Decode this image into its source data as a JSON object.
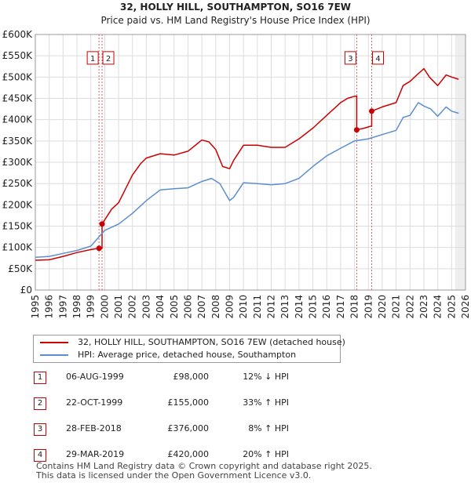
{
  "chart_data": {
    "type": "line",
    "title": "32, HOLLY HILL, SOUTHAMPTON, SO16 7EW",
    "subtitle": "Price paid vs. HM Land Registry's House Price Index (HPI)",
    "xlabel": "",
    "ylabel": "",
    "xlim": [
      1995,
      2026
    ],
    "ylim": [
      0,
      600000
    ],
    "x_ticks": [
      "1995",
      "1996",
      "1997",
      "1998",
      "1999",
      "2000",
      "2001",
      "2002",
      "2003",
      "2004",
      "2005",
      "2006",
      "2007",
      "2008",
      "2009",
      "2010",
      "2011",
      "2012",
      "2013",
      "2014",
      "2015",
      "2016",
      "2017",
      "2018",
      "2019",
      "2020",
      "2021",
      "2022",
      "2023",
      "2024",
      "2025",
      "2026"
    ],
    "y_ticks": [
      {
        "value": 0,
        "label": "£0"
      },
      {
        "value": 50000,
        "label": "£50K"
      },
      {
        "value": 100000,
        "label": "£100K"
      },
      {
        "value": 150000,
        "label": "£150K"
      },
      {
        "value": 200000,
        "label": "£200K"
      },
      {
        "value": 250000,
        "label": "£250K"
      },
      {
        "value": 300000,
        "label": "£300K"
      },
      {
        "value": 350000,
        "label": "£350K"
      },
      {
        "value": 400000,
        "label": "£400K"
      },
      {
        "value": 450000,
        "label": "£450K"
      },
      {
        "value": 500000,
        "label": "£500K"
      },
      {
        "value": 550000,
        "label": "£550K"
      },
      {
        "value": 600000,
        "label": "£600K"
      }
    ],
    "grid": true,
    "future_shading_from": 2025.25,
    "series": [
      {
        "name": "32, HOLLY HILL, SOUTHAMPTON, SO16 7EW (detached house)",
        "color": "#cc0000",
        "x": [
          1995,
          1996,
          1997,
          1998,
          1999.0,
          1999.59,
          1999.59,
          1999.81,
          1999.81,
          2000.5,
          2001,
          2002,
          2002.6,
          2003,
          2004,
          2005,
          2006,
          2007,
          2007.5,
          2008,
          2008.5,
          2009,
          2009.3,
          2010,
          2011,
          2012,
          2013,
          2014,
          2015,
          2016,
          2017,
          2017.5,
          2018.0,
          2018.16,
          2018.16,
          2018.7,
          2019.1,
          2019.24,
          2019.24,
          2020,
          2021,
          2021.5,
          2022,
          2022.5,
          2023,
          2023.4,
          2024,
          2024.6,
          2025,
          2025.5
        ],
        "y": [
          70000,
          71000,
          79000,
          88000,
          95000,
          98000,
          98000,
          98000,
          155000,
          190000,
          205000,
          270000,
          297000,
          310000,
          320000,
          317000,
          326000,
          352000,
          348000,
          330000,
          290000,
          285000,
          305000,
          340000,
          340000,
          335000,
          335000,
          355000,
          380000,
          410000,
          440000,
          450000,
          455000,
          455000,
          376000,
          380000,
          384000,
          385000,
          420000,
          430000,
          440000,
          480000,
          490000,
          505000,
          520000,
          500000,
          480000,
          505000,
          500000,
          495000
        ]
      },
      {
        "name": "HPI: Average price, detached house, Southampton",
        "color": "#5b8fcf",
        "x": [
          1995,
          1996,
          1997,
          1998,
          1999,
          2000,
          2001,
          2002,
          2003,
          2004,
          2005,
          2006,
          2007,
          2007.7,
          2008.3,
          2009.0,
          2009.3,
          2010,
          2011,
          2012,
          2013,
          2014,
          2015,
          2016,
          2017,
          2018,
          2019,
          2020,
          2021,
          2021.5,
          2022,
          2022.6,
          2023,
          2023.5,
          2024,
          2024.6,
          2025,
          2025.5
        ],
        "y": [
          77000,
          79000,
          86000,
          93000,
          103000,
          140000,
          155000,
          180000,
          210000,
          235000,
          238000,
          240000,
          255000,
          262000,
          250000,
          210000,
          218000,
          252000,
          250000,
          247000,
          250000,
          262000,
          290000,
          315000,
          333000,
          350000,
          355000,
          365000,
          375000,
          405000,
          410000,
          440000,
          432000,
          425000,
          408000,
          430000,
          420000,
          415000
        ]
      }
    ],
    "markers": [
      {
        "label": "1",
        "x": 1999.59,
        "y": 98000
      },
      {
        "label": "2",
        "x": 1999.81,
        "y": 155000
      },
      {
        "label": "3",
        "x": 2018.16,
        "y": 376000
      },
      {
        "label": "4",
        "x": 2019.24,
        "y": 420000
      }
    ],
    "marker_label_y": 545000
  },
  "legend": {
    "items": [
      {
        "label": "32, HOLLY HILL, SOUTHAMPTON, SO16 7EW (detached house)",
        "color": "#cc0000"
      },
      {
        "label": "HPI: Average price, detached house, Southampton",
        "color": "#5b8fcf"
      }
    ]
  },
  "transactions": [
    {
      "num": "1",
      "date": "06-AUG-1999",
      "price": "£98,000",
      "hpi": "12% ↓ HPI"
    },
    {
      "num": "2",
      "date": "22-OCT-1999",
      "price": "£155,000",
      "hpi": "33% ↑ HPI"
    },
    {
      "num": "3",
      "date": "28-FEB-2018",
      "price": "£376,000",
      "hpi": "8% ↑ HPI"
    },
    {
      "num": "4",
      "date": "29-MAR-2019",
      "price": "£420,000",
      "hpi": "20% ↑ HPI"
    }
  ],
  "footer": {
    "line1": "Contains HM Land Registry data © Crown copyright and database right 2025.",
    "line2": "This data is licensed under the Open Government Licence v3.0."
  }
}
